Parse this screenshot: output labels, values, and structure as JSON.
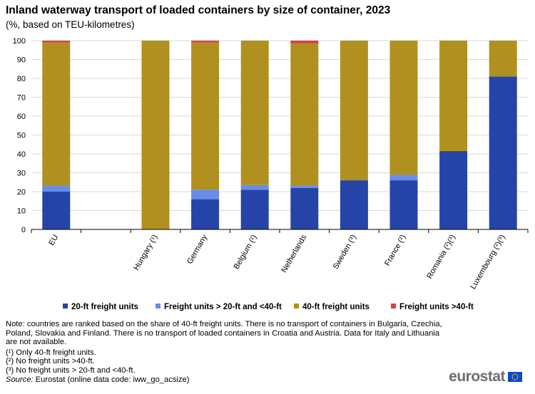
{
  "chart_data": {
    "type": "bar",
    "stacked": true,
    "title": "Inland waterway transport of loaded containers by size of container, 2023",
    "subtitle": "(%, based on TEU-kilometres)",
    "categories": [
      "EU",
      "",
      "Hungary (¹)",
      "Germany",
      "Belgium (²)",
      "Netherlands",
      "Sweden (³)",
      "France (²)",
      "Romania (²)(³)",
      "Luxembourg (²)(³)"
    ],
    "series": [
      {
        "name": "20-ft freight units",
        "color": "#2644a7",
        "values": [
          20,
          0,
          0,
          16,
          21,
          22,
          26,
          26,
          41.5,
          81
        ]
      },
      {
        "name": "Freight units > 20-ft and <40-ft",
        "color": "#688ce8",
        "values": [
          3,
          0,
          0,
          5,
          2.5,
          1,
          0,
          3,
          0,
          0
        ]
      },
      {
        "name": "40-ft freight units",
        "color": "#b09120",
        "values": [
          76,
          0,
          100,
          78,
          76.5,
          75.5,
          74,
          71,
          58.5,
          19
        ]
      },
      {
        "name": "Freight units >40-ft",
        "color": "#e04040",
        "values": [
          1,
          0,
          0,
          1,
          0,
          1.5,
          0,
          0,
          0,
          0
        ]
      }
    ],
    "ylim": [
      0,
      100
    ],
    "yticks": [
      0,
      10,
      20,
      30,
      40,
      50,
      60,
      70,
      80,
      90,
      100
    ],
    "xlabel": "",
    "ylabel": "",
    "grid": true,
    "legend_position": "bottom"
  },
  "notes": {
    "main": "Note: countries are ranked based on the share of 40-ft freight units. There is no transport of containers in Bulgaria, Czechia, Poland, Slovakia and Finland. There is no transport of loaded containers in Croatia and Austria. Data for Italy and Lithuania are not available.",
    "fn1": "(¹) Only  40-ft freight units.",
    "fn2": "(²) No freight units >40-ft.",
    "fn3": "(³) No freight units > 20-ft and <40-ft.",
    "source_label": "Source:",
    "source_text": " Eurostat (online data code: iww_go_acsize)"
  },
  "logo": {
    "text": "eurostat"
  },
  "colors": {
    "grid": "#d9d9d9",
    "axis": "#000000",
    "flag_blue": "#0e47cb",
    "flag_star": "#ffdd00"
  }
}
